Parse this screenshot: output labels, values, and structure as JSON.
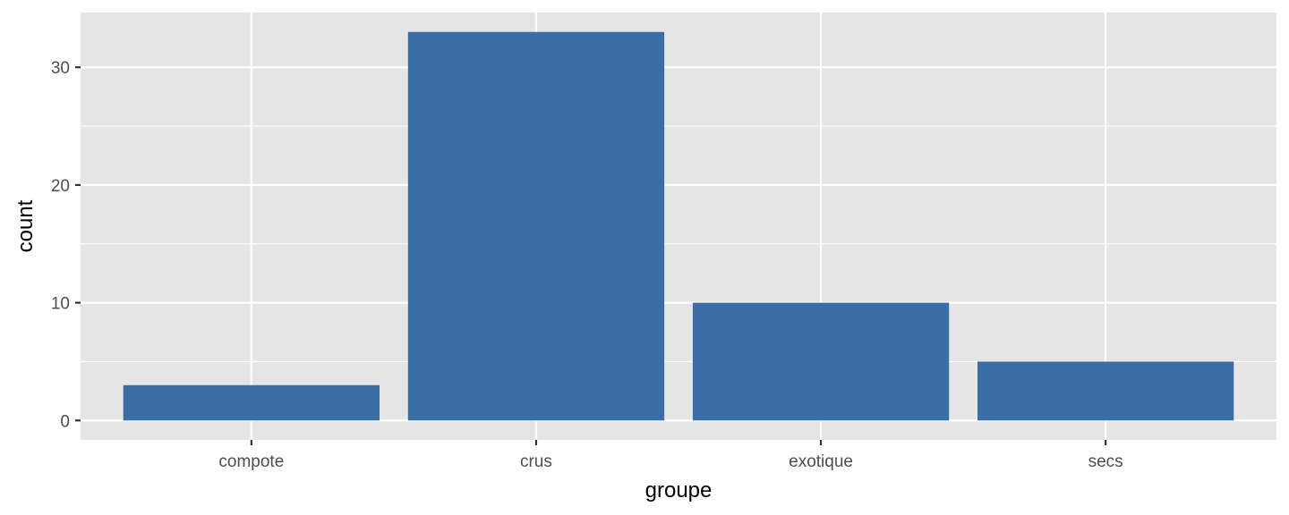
{
  "chart_data": {
    "type": "bar",
    "categories": [
      "compote",
      "crus",
      "exotique",
      "secs"
    ],
    "values": [
      3,
      33,
      10,
      5
    ],
    "xlabel": "groupe",
    "ylabel": "count",
    "ylim": [
      -1.65,
      34.65
    ],
    "yticks": [
      0,
      10,
      20,
      30
    ],
    "grid": true,
    "bar_color": "#3a6ea5",
    "panel_color": "#e5e5e5"
  }
}
